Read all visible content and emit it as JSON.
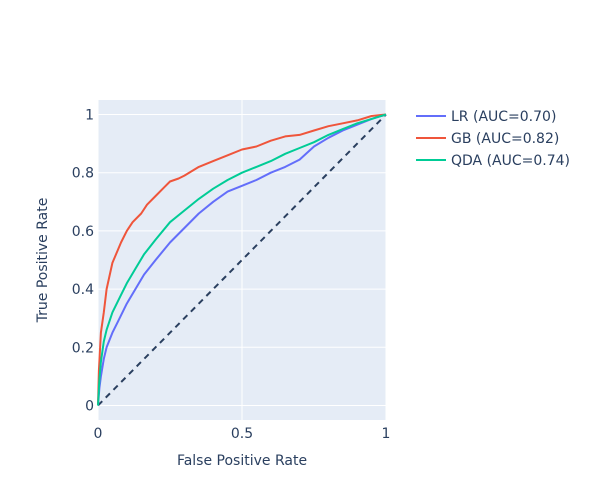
{
  "chart_data": {
    "type": "line",
    "xlabel": "False Positive Rate",
    "ylabel": "True Positive Rate",
    "xlim": [
      0,
      1
    ],
    "ylim": [
      -0.05,
      1.05
    ],
    "x_ticks": [
      0,
      0.5,
      1
    ],
    "x_tick_labels": [
      "0",
      "0.5",
      "1"
    ],
    "y_ticks": [
      0,
      0.2,
      0.4,
      0.6,
      0.8,
      1
    ],
    "y_tick_labels": [
      "0",
      "0.2",
      "0.4",
      "0.6",
      "0.8",
      "1"
    ],
    "grid": true,
    "legend_position": "top-right, outside plot",
    "plot_background": "#e5ecf6",
    "diagonal": {
      "color": "#2a3f5f",
      "style": "dashed",
      "points": [
        [
          0,
          0
        ],
        [
          1,
          1
        ]
      ]
    },
    "series": [
      {
        "name": "LR (AUC=0.70)",
        "color": "#636efa",
        "points": [
          [
            0,
            0
          ],
          [
            0.005,
            0.06
          ],
          [
            0.01,
            0.1
          ],
          [
            0.02,
            0.16
          ],
          [
            0.03,
            0.2
          ],
          [
            0.05,
            0.25
          ],
          [
            0.07,
            0.29
          ],
          [
            0.1,
            0.35
          ],
          [
            0.13,
            0.4
          ],
          [
            0.16,
            0.45
          ],
          [
            0.2,
            0.5
          ],
          [
            0.25,
            0.56
          ],
          [
            0.3,
            0.61
          ],
          [
            0.35,
            0.66
          ],
          [
            0.4,
            0.7
          ],
          [
            0.45,
            0.735
          ],
          [
            0.5,
            0.755
          ],
          [
            0.55,
            0.775
          ],
          [
            0.6,
            0.8
          ],
          [
            0.65,
            0.82
          ],
          [
            0.7,
            0.845
          ],
          [
            0.75,
            0.89
          ],
          [
            0.8,
            0.92
          ],
          [
            0.85,
            0.945
          ],
          [
            0.9,
            0.965
          ],
          [
            0.95,
            0.985
          ],
          [
            1,
            1
          ]
        ]
      },
      {
        "name": "GB (AUC=0.82)",
        "color": "#ef553b",
        "points": [
          [
            0,
            0
          ],
          [
            0.003,
            0.12
          ],
          [
            0.01,
            0.25
          ],
          [
            0.02,
            0.32
          ],
          [
            0.03,
            0.4
          ],
          [
            0.05,
            0.49
          ],
          [
            0.08,
            0.56
          ],
          [
            0.1,
            0.6
          ],
          [
            0.12,
            0.63
          ],
          [
            0.15,
            0.66
          ],
          [
            0.17,
            0.69
          ],
          [
            0.2,
            0.72
          ],
          [
            0.23,
            0.75
          ],
          [
            0.25,
            0.77
          ],
          [
            0.28,
            0.78
          ],
          [
            0.3,
            0.79
          ],
          [
            0.35,
            0.82
          ],
          [
            0.4,
            0.84
          ],
          [
            0.45,
            0.86
          ],
          [
            0.5,
            0.88
          ],
          [
            0.55,
            0.89
          ],
          [
            0.6,
            0.91
          ],
          [
            0.65,
            0.925
          ],
          [
            0.7,
            0.93
          ],
          [
            0.75,
            0.945
          ],
          [
            0.8,
            0.96
          ],
          [
            0.85,
            0.97
          ],
          [
            0.9,
            0.98
          ],
          [
            0.95,
            0.995
          ],
          [
            1,
            1
          ]
        ]
      },
      {
        "name": "QDA (AUC=0.74)",
        "color": "#00cc96",
        "points": [
          [
            0,
            0
          ],
          [
            0.005,
            0.09
          ],
          [
            0.01,
            0.15
          ],
          [
            0.02,
            0.22
          ],
          [
            0.03,
            0.26
          ],
          [
            0.05,
            0.32
          ],
          [
            0.08,
            0.38
          ],
          [
            0.1,
            0.42
          ],
          [
            0.13,
            0.47
          ],
          [
            0.16,
            0.52
          ],
          [
            0.2,
            0.57
          ],
          [
            0.25,
            0.63
          ],
          [
            0.3,
            0.67
          ],
          [
            0.35,
            0.71
          ],
          [
            0.4,
            0.745
          ],
          [
            0.45,
            0.775
          ],
          [
            0.5,
            0.8
          ],
          [
            0.55,
            0.82
          ],
          [
            0.6,
            0.84
          ],
          [
            0.65,
            0.865
          ],
          [
            0.7,
            0.885
          ],
          [
            0.75,
            0.905
          ],
          [
            0.8,
            0.93
          ],
          [
            0.85,
            0.95
          ],
          [
            0.9,
            0.97
          ],
          [
            0.95,
            0.985
          ],
          [
            1,
            1
          ]
        ]
      }
    ]
  }
}
